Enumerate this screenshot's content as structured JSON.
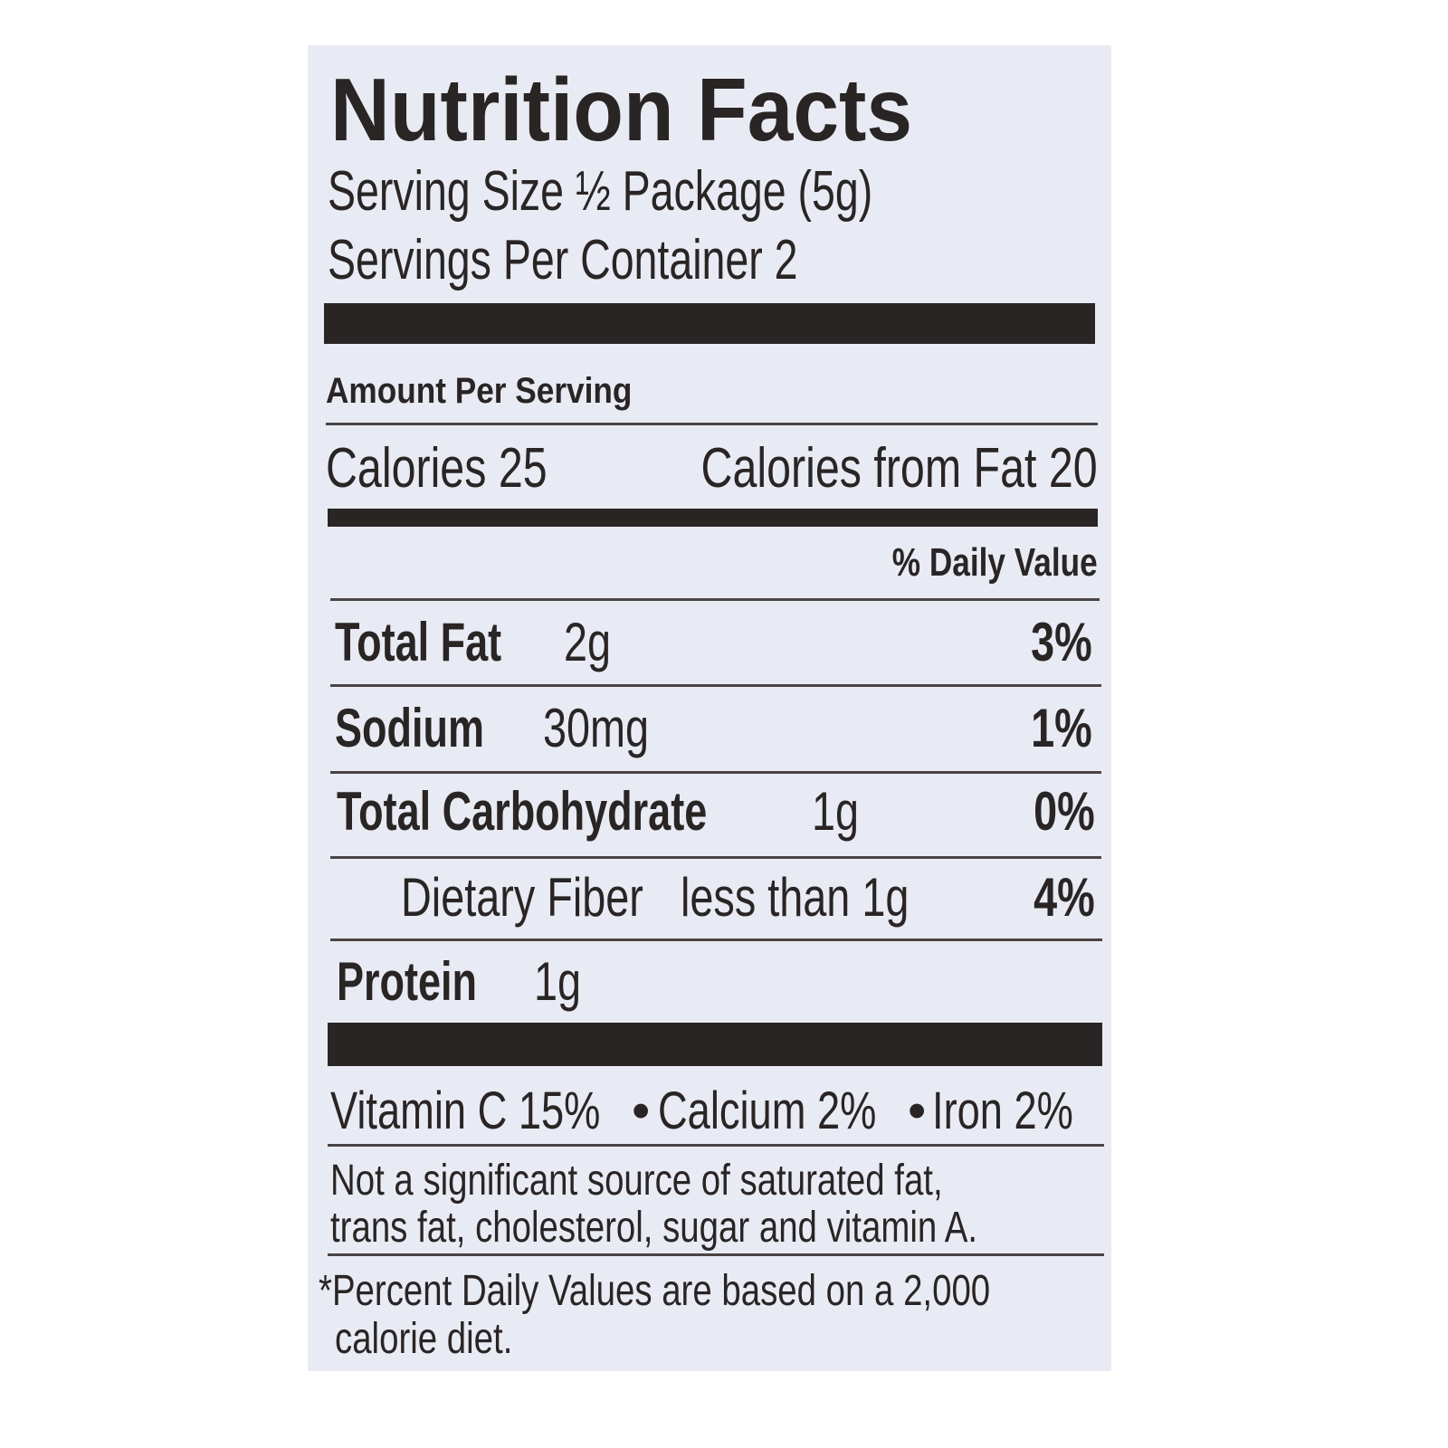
{
  "title": "Nutrition Facts",
  "serving_size": "Serving Size ½ Package (5g)",
  "servings_per_container": "Servings Per Container  2",
  "amount_per_serving": "Amount Per Serving",
  "calories": "Calories 25",
  "calories_from_fat": "Calories from Fat 20",
  "daily_value_header": "% Daily Value",
  "nutrients": [
    {
      "name": "Total Fat",
      "amount": "2g",
      "daily_value": "3%"
    },
    {
      "name": "Sodium",
      "amount": "30mg",
      "daily_value": "1%"
    },
    {
      "name": "Total Carbohydrate",
      "amount": "1g",
      "daily_value": "0%"
    },
    {
      "name": "Dietary Fiber",
      "amount": "less than 1g",
      "daily_value": "4%"
    },
    {
      "name": "Protein",
      "amount": "1g"
    }
  ],
  "vitamins": [
    "Vitamin C 15%",
    "Calcium 2%",
    "Iron 2%"
  ],
  "note": [
    "Not a significant source of saturated fat,",
    "trans fat, cholesterol, sugar and vitamin A."
  ],
  "footnote": [
    "*Percent Daily Values are based on a 2,000",
    "calorie diet."
  ]
}
